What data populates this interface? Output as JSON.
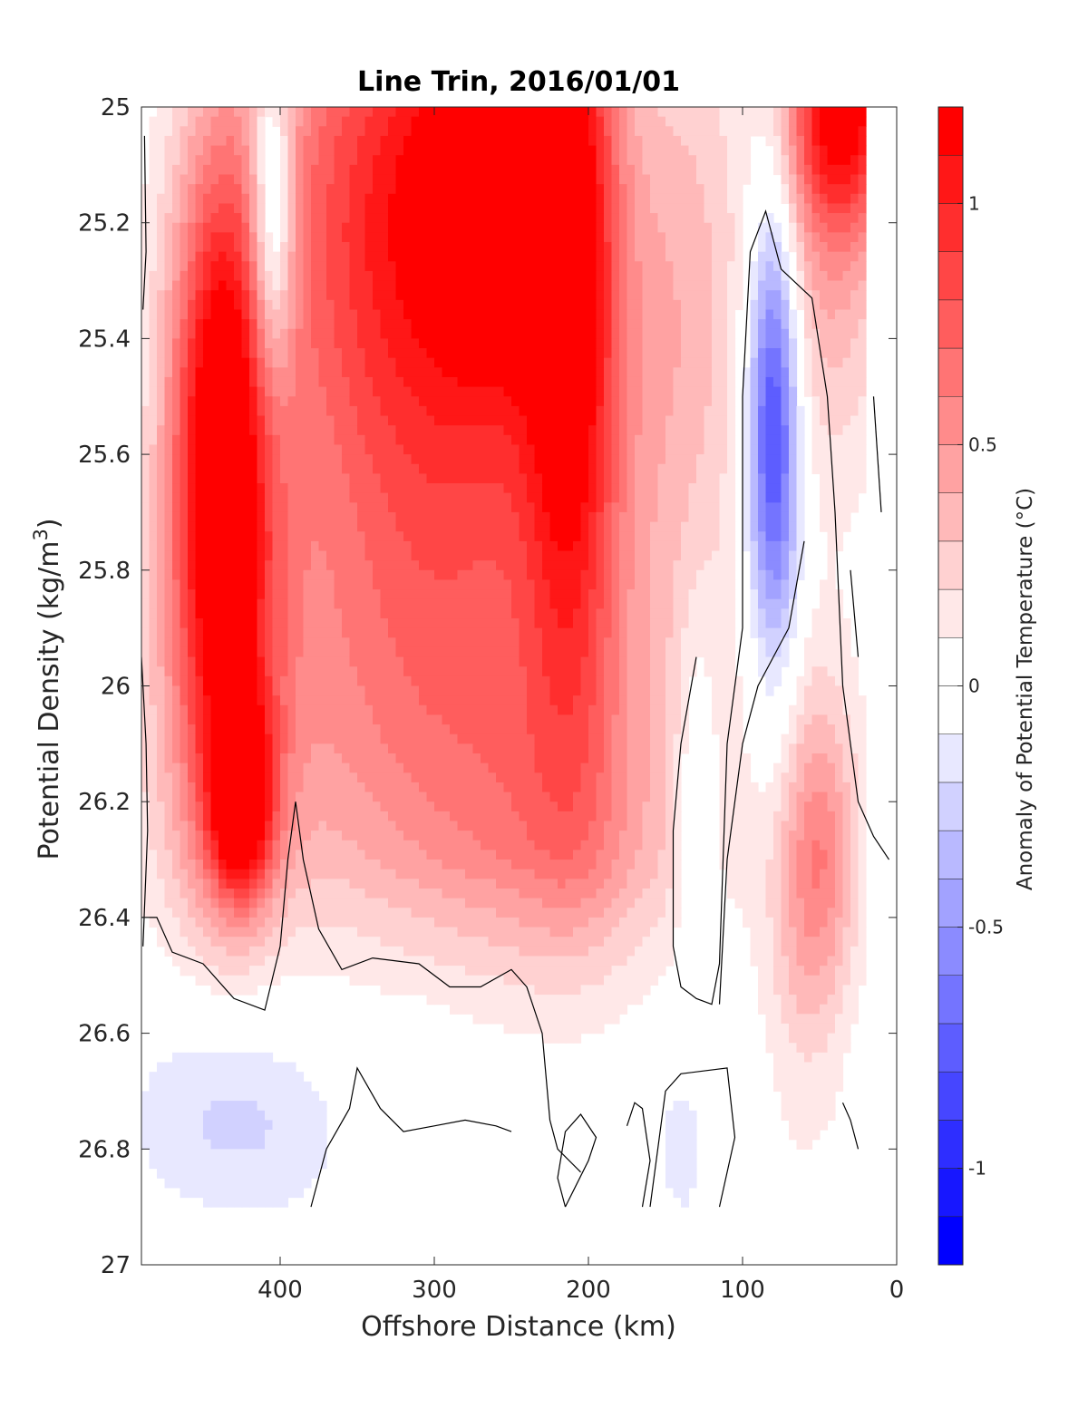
{
  "chart_data": {
    "type": "contour",
    "title": "Line Trin, 2016/01/01",
    "xlabel": "Offshore Distance (km)",
    "ylabel": "Potential Density (kg/m3)",
    "ylabel_base": "Potential Density (kg/m",
    "ylabel_sup": "3",
    "ylabel_tail": ")",
    "xlim": [
      490,
      0
    ],
    "ylim": [
      25,
      27
    ],
    "x_reversed": true,
    "y_reversed": true,
    "xticks": [
      400,
      300,
      200,
      100,
      0
    ],
    "xtick_labels": [
      "400",
      "300",
      "200",
      "100",
      "0"
    ],
    "yticks": [
      25,
      25.2,
      25.4,
      25.6,
      25.8,
      26,
      26.2,
      26.4,
      26.6,
      26.8,
      27
    ],
    "ytick_labels": [
      "25",
      "25.2",
      "25.4",
      "25.6",
      "25.8",
      "26",
      "26.2",
      "26.4",
      "26.6",
      "26.8",
      "27"
    ],
    "colorbar": {
      "label": "Anomaly of Potential Temperature (°C)",
      "range": [
        -1.2,
        1.2
      ],
      "step": 0.1,
      "ticks": [
        1,
        0.5,
        0,
        -0.5,
        -1
      ],
      "tick_labels": [
        "1",
        "0.5",
        "0",
        "-0.5",
        "-1"
      ],
      "colormap": "blue-white-red"
    },
    "field_regions": [
      {
        "name": "warm core offshore",
        "x": 440,
        "y": 25.5,
        "value": 0.9
      },
      {
        "name": "warm core offshore deep",
        "x": 425,
        "y": 26.2,
        "value": 1.0
      },
      {
        "name": "warm upper central",
        "x": 260,
        "y": 25.1,
        "value": 1.1
      },
      {
        "name": "warm upper 200 km",
        "x": 200,
        "y": 25.1,
        "value": 1.1
      },
      {
        "name": "warm nearshore top",
        "x": 40,
        "y": 25.0,
        "value": 1.1
      },
      {
        "name": "cool nearshore",
        "x": 80,
        "y": 25.5,
        "value": -0.4
      },
      {
        "name": "cool deep offshore",
        "x": 420,
        "y": 26.8,
        "value": -0.3
      },
      {
        "name": "cool deep 140 km",
        "x": 140,
        "y": 26.8,
        "value": -0.4
      },
      {
        "name": "warm nearshore deep",
        "x": 50,
        "y": 26.3,
        "value": 0.5
      }
    ]
  }
}
